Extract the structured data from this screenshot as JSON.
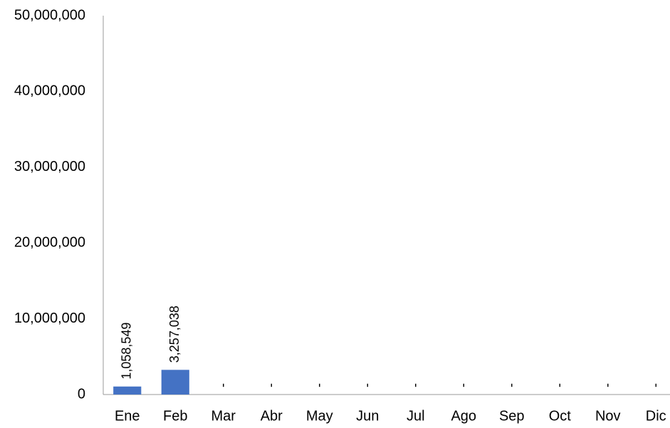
{
  "chart_data": {
    "type": "bar",
    "categories": [
      "Ene",
      "Feb",
      "Mar",
      "Abr",
      "May",
      "Jun",
      "Jul",
      "Ago",
      "Sep",
      "Oct",
      "Nov",
      "Dic"
    ],
    "values": [
      1058549,
      3257038,
      0,
      0,
      0,
      0,
      0,
      0,
      0,
      0,
      0,
      0
    ],
    "value_labels": [
      "1,058,549",
      "3,257,038",
      "-",
      "-",
      "-",
      "-",
      "-",
      "-",
      "-",
      "-",
      "-",
      "-"
    ],
    "color": "#4472c4",
    "ylim": [
      0,
      50000000
    ],
    "yticks": [
      0,
      {
        "value": 10000000,
        "label": "10,000,000"
      },
      {
        "value": 20000000,
        "label": "20,000,000"
      },
      {
        "value": 30000000,
        "label": "30,000,000"
      },
      {
        "value": 40000000,
        "label": "40,000,000"
      },
      {
        "value": 50000000,
        "label": "50,000,000"
      }
    ],
    "grid": false
  }
}
